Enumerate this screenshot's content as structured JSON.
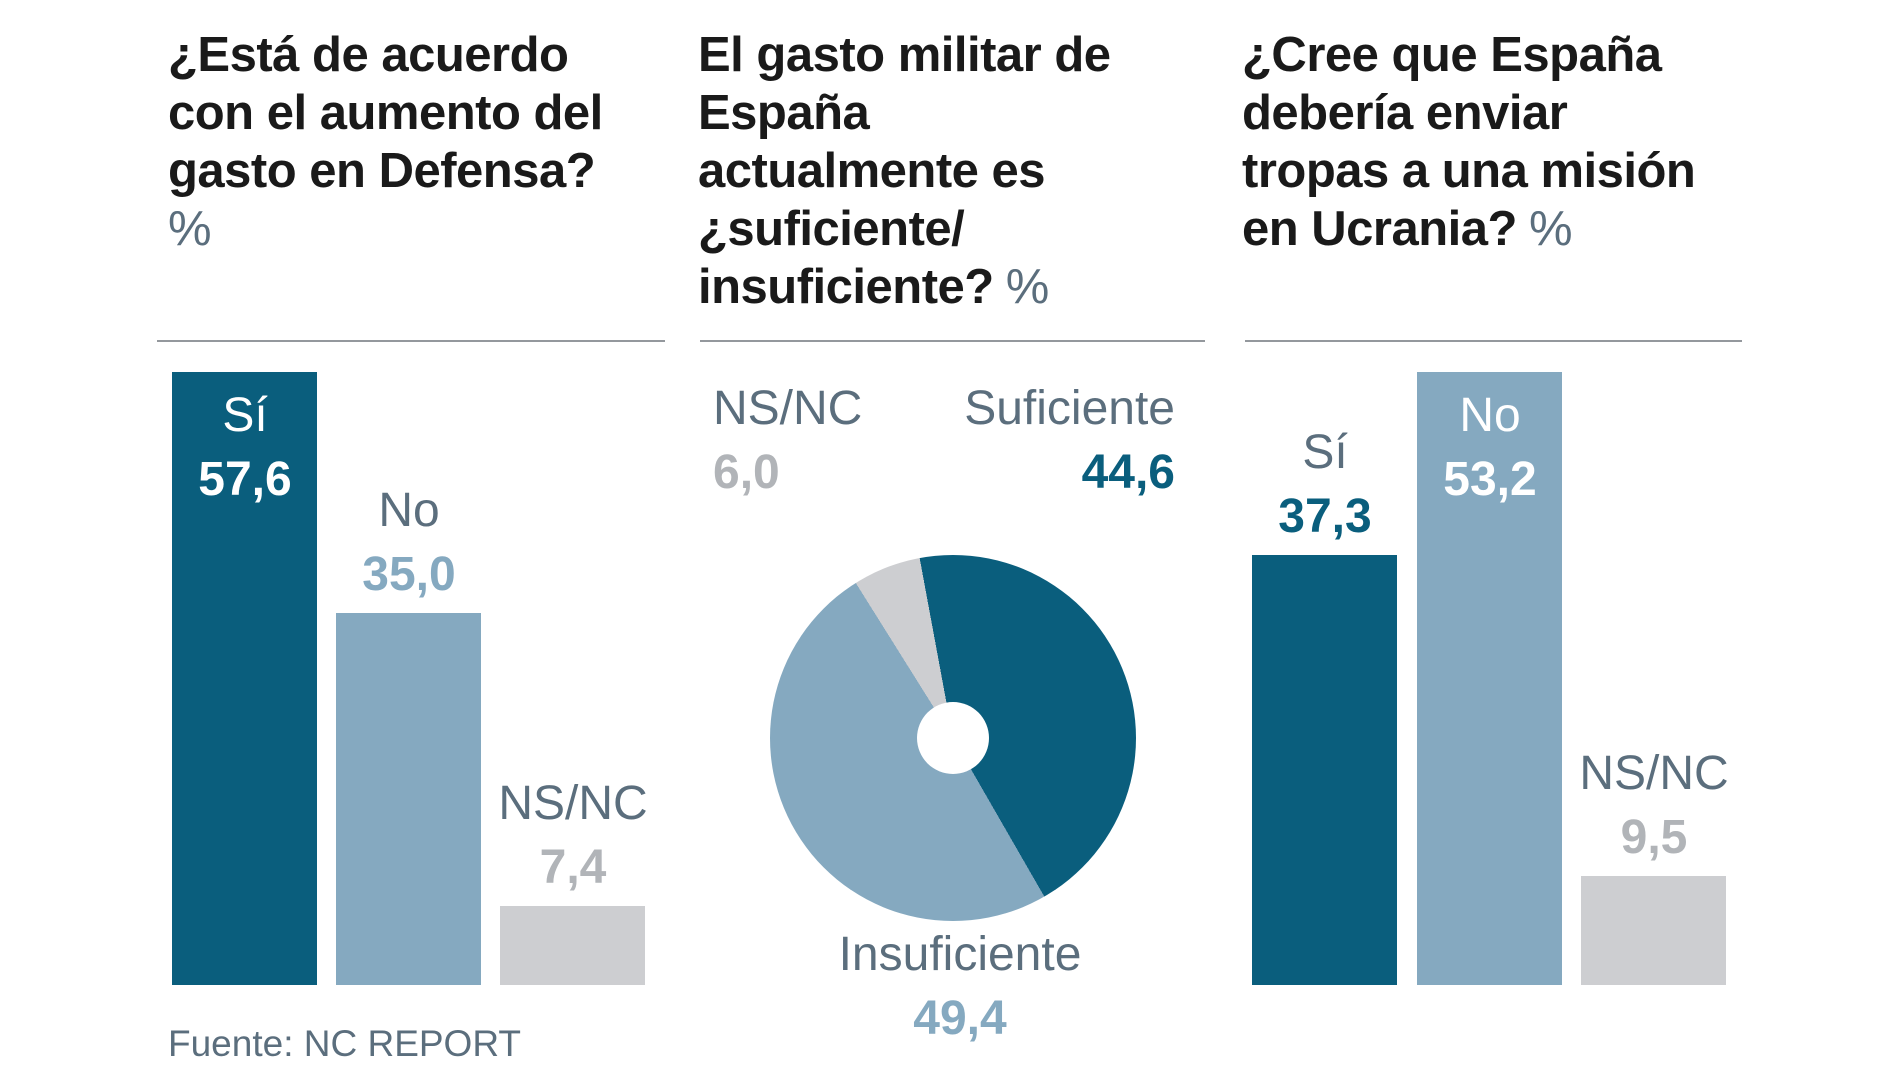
{
  "source_note": "Fuente: NC REPORT",
  "colors": {
    "dark_teal": "#0a5e7d",
    "light_blue": "#85a9c0",
    "light_gray": "#cdced1",
    "slate_text": "#5b6e7d",
    "muted_value_text": "#b1b4b8",
    "title_text": "#1a1a1a",
    "separator": "#94989d",
    "background": "#ffffff"
  },
  "chart_data": [
    {
      "type": "bar",
      "title": "¿Está de acuerdo con el aumento del gasto en Defensa?",
      "title_lines": [
        "¿Está de acuerdo",
        "con el aumento del",
        "gasto en Defensa?"
      ],
      "unit": "%",
      "unit_placement": "own_line",
      "categories": [
        "Sí",
        "No",
        "NS/NC"
      ],
      "values": [
        57.6,
        35.0,
        7.4
      ],
      "value_labels": [
        "57,6",
        "35,0",
        "7,4"
      ],
      "bar_colors": [
        "#0a5e7d",
        "#85a9c0",
        "#cdced1"
      ],
      "label_placement": [
        "inside",
        "above",
        "above"
      ],
      "label_colors": [
        "#ffffff",
        "#5b6e7d",
        "#5b6e7d"
      ],
      "value_colors": [
        "#ffffff",
        "#85a9c0",
        "#b1b4b8"
      ],
      "grid": "off",
      "ylim": [
        0,
        57.6
      ]
    },
    {
      "type": "pie",
      "title": "El gasto militar de España actualmente es ¿suficiente/insuficiente?",
      "title_lines": [
        "El gasto militar de",
        "España",
        "actualmente es",
        "¿suficiente/",
        "insuficiente?"
      ],
      "unit": "%",
      "unit_placement": "inline_end",
      "categories": [
        "Suficiente",
        "Insuficiente",
        "NS/NC"
      ],
      "values": [
        44.6,
        49.4,
        6.0
      ],
      "value_labels": [
        "44,6",
        "49,4",
        "6,0"
      ],
      "slice_colors": [
        "#0a5e7d",
        "#85a9c0",
        "#cdced1"
      ],
      "start_angle_deg": -10.5,
      "donut_hole": true,
      "legend_position": "callouts"
    },
    {
      "type": "bar",
      "title": "¿Cree que España debería enviar tropas a una misión en Ucrania?",
      "title_lines": [
        "¿Cree que España",
        "debería enviar",
        "tropas a una misión",
        "en Ucrania?"
      ],
      "unit": "%",
      "unit_placement": "inline_end",
      "categories": [
        "Sí",
        "No",
        "NS/NC"
      ],
      "values": [
        37.3,
        53.2,
        9.5
      ],
      "value_labels": [
        "37,3",
        "53,2",
        "9,5"
      ],
      "bar_colors": [
        "#0a5e7d",
        "#85a9c0",
        "#cdced1"
      ],
      "label_placement": [
        "above",
        "inside",
        "above"
      ],
      "label_colors": [
        "#5b6e7d",
        "#ffffff",
        "#5b6e7d"
      ],
      "value_colors": [
        "#0a5e7d",
        "#ffffff",
        "#b1b4b8"
      ],
      "grid": "off",
      "ylim": [
        0,
        53.2
      ]
    }
  ]
}
